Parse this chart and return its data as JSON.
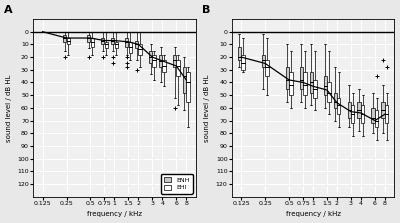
{
  "frequencies": [
    0.125,
    0.25,
    0.5,
    0.75,
    1,
    1.5,
    2,
    3,
    4,
    6,
    8
  ],
  "freq_labels": [
    "0.125",
    "0.25",
    "0.5",
    "0.75",
    "1",
    "1.5",
    "2",
    "3",
    "4",
    "6",
    "8"
  ],
  "panel_A": {
    "title": "A",
    "ylabel": "sound level / dB HL",
    "xlabel": "frequency / kHz",
    "ylim": [
      -10,
      130
    ],
    "yticks": [
      0,
      10,
      20,
      30,
      40,
      50,
      60,
      70,
      80,
      90,
      100,
      110,
      120
    ],
    "ytick_labels": [
      "0",
      "10",
      "20",
      "30",
      "40",
      "50",
      "60",
      "70",
      "80",
      "90",
      "100",
      "110",
      "120"
    ],
    "boxes_ENH": {
      "medians": [
        0,
        5,
        5,
        7,
        7,
        8,
        10,
        20,
        23,
        22,
        35
      ],
      "q1": [
        0,
        3,
        3,
        5,
        5,
        5,
        7,
        15,
        18,
        18,
        28
      ],
      "q3": [
        0,
        8,
        8,
        10,
        10,
        12,
        13,
        25,
        28,
        28,
        48
      ],
      "whislo": [
        0,
        0,
        0,
        0,
        0,
        0,
        0,
        10,
        12,
        12,
        20
      ],
      "whishi": [
        0,
        15,
        13,
        15,
        15,
        18,
        22,
        33,
        40,
        52,
        62
      ],
      "fliers": [
        [],
        [
          20
        ],
        [
          20
        ],
        [
          20
        ],
        [
          20,
          25
        ],
        [
          20,
          25,
          28
        ],
        [
          30
        ],
        [],
        [],
        [
          60
        ],
        []
      ]
    },
    "boxes_EHI": {
      "medians": [
        0,
        7,
        8,
        10,
        10,
        12,
        14,
        22,
        27,
        27,
        40
      ],
      "q1": [
        0,
        5,
        5,
        8,
        8,
        8,
        10,
        18,
        22,
        22,
        32
      ],
      "q3": [
        0,
        10,
        12,
        13,
        13,
        17,
        18,
        28,
        32,
        35,
        55
      ],
      "whislo": [
        0,
        0,
        0,
        0,
        0,
        0,
        0,
        15,
        18,
        18,
        28
      ],
      "whishi": [
        0,
        18,
        18,
        18,
        18,
        22,
        28,
        38,
        43,
        58,
        75
      ],
      "fliers": [
        [],
        [],
        [],
        [],
        [],
        [],
        [],
        [],
        [],
        [],
        []
      ]
    },
    "trend_x": [
      0.125,
      0.25,
      0.5,
      0.75,
      1,
      1.5,
      2,
      3,
      4,
      6,
      8
    ],
    "trend_y": [
      0,
      5,
      5,
      7,
      7,
      8,
      10,
      20,
      23,
      27,
      38
    ]
  },
  "panel_B": {
    "title": "B",
    "ylabel": "sound level / dB HL",
    "xlabel": "frequency / kHz",
    "ylim": [
      -10,
      130
    ],
    "yticks": [
      0,
      10,
      20,
      30,
      40,
      50,
      60,
      70,
      80,
      90,
      100,
      110,
      120
    ],
    "ytick_labels": [
      "0",
      "10",
      "20",
      "30",
      "40",
      "50",
      "60",
      "70",
      "80",
      "90",
      "100",
      "110",
      "120"
    ],
    "boxes_ENH": {
      "medians": [
        20,
        22,
        38,
        38,
        40,
        43,
        55,
        62,
        62,
        68,
        62
      ],
      "q1": [
        12,
        18,
        28,
        28,
        32,
        35,
        48,
        55,
        55,
        60,
        55
      ],
      "q3": [
        22,
        28,
        45,
        45,
        48,
        50,
        60,
        68,
        68,
        72,
        68
      ],
      "whislo": [
        2,
        2,
        10,
        10,
        10,
        10,
        28,
        42,
        45,
        48,
        42
      ],
      "whishi": [
        28,
        45,
        55,
        55,
        58,
        60,
        70,
        75,
        78,
        80,
        80
      ],
      "fliers": [
        [],
        [],
        [],
        [],
        [],
        [],
        [],
        [],
        [],
        [],
        [
          22
        ]
      ]
    },
    "boxes_EHI": {
      "medians": [
        25,
        28,
        42,
        42,
        45,
        48,
        58,
        65,
        65,
        70,
        65
      ],
      "q1": [
        18,
        22,
        32,
        32,
        38,
        40,
        52,
        58,
        58,
        62,
        58
      ],
      "q3": [
        30,
        35,
        50,
        50,
        52,
        55,
        65,
        72,
        72,
        75,
        72
      ],
      "whislo": [
        5,
        5,
        15,
        15,
        15,
        15,
        32,
        48,
        50,
        52,
        48
      ],
      "whishi": [
        32,
        50,
        60,
        60,
        62,
        65,
        75,
        82,
        82,
        85,
        85
      ],
      "fliers": [
        [],
        [],
        [],
        [],
        [],
        [],
        [],
        [],
        [],
        [
          35
        ],
        [
          28
        ]
      ]
    },
    "trend_x": [
      0.125,
      0.25,
      0.5,
      0.75,
      1,
      1.5,
      2,
      3,
      4,
      6,
      8
    ],
    "trend_y": [
      20,
      25,
      38,
      40,
      43,
      46,
      56,
      63,
      64,
      70,
      65
    ]
  },
  "colors": {
    "ENH_fill": "#c8c8c8",
    "EHI_fill": "#ffffff",
    "box_edge": "#000000",
    "median_color": "#000000",
    "whisker_color": "#000000",
    "flier_color": "#000000"
  },
  "legend": {
    "ENH_label": "ENH",
    "EHI_label": "EHI"
  },
  "background_color": "#f0f0f0",
  "grid_color": "#ffffff"
}
